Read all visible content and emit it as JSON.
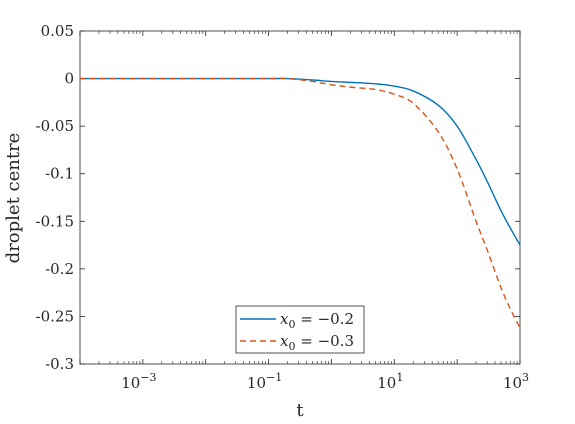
{
  "chart_data": {
    "type": "line",
    "xlabel": "t",
    "ylabel": "droplet centre",
    "xscale": "log",
    "xlim": [
      0.0001,
      1000
    ],
    "ylim": [
      -0.3,
      0.05
    ],
    "x_ticks": [
      {
        "value": 0.001,
        "base": "10",
        "exp": "−3"
      },
      {
        "value": 0.1,
        "base": "10",
        "exp": "−1"
      },
      {
        "value": 10,
        "base": "10",
        "exp": "1"
      },
      {
        "value": 1000,
        "base": "10",
        "exp": "3"
      }
    ],
    "y_ticks": [
      {
        "value": 0.05,
        "label": "0.05"
      },
      {
        "value": 0,
        "label": "0"
      },
      {
        "value": -0.05,
        "label": "-0.05"
      },
      {
        "value": -0.1,
        "label": "-0.1"
      },
      {
        "value": -0.15,
        "label": "-0.15"
      },
      {
        "value": -0.2,
        "label": "-0.2"
      },
      {
        "value": -0.25,
        "label": "-0.25"
      },
      {
        "value": -0.3,
        "label": "-0.3"
      }
    ],
    "grid": false,
    "legend_position": "bottom-center",
    "series": [
      {
        "name": "x_0 = −0.2",
        "legend_var": "x",
        "legend_sub": "0",
        "legend_rest": " = −0.2",
        "color": "#0072BD",
        "style": "solid",
        "x": [
          0.0001,
          0.001,
          0.01,
          0.1,
          0.2,
          0.5,
          1,
          2,
          5,
          10,
          20,
          50,
          100,
          200,
          300,
          500,
          700,
          1000
        ],
        "y": [
          0,
          0,
          0,
          0,
          0,
          -0.0015,
          -0.003,
          -0.004,
          -0.0055,
          -0.008,
          -0.013,
          -0.028,
          -0.05,
          -0.085,
          -0.108,
          -0.139,
          -0.157,
          -0.175
        ]
      },
      {
        "name": "x_0 = −0.3",
        "legend_var": "x",
        "legend_sub": "0",
        "legend_rest": " = −0.3",
        "color": "#D95319",
        "style": "dashed",
        "x": [
          0.0001,
          0.001,
          0.01,
          0.1,
          0.2,
          0.5,
          1,
          2,
          5,
          10,
          20,
          50,
          100,
          200,
          300,
          500,
          700,
          1000
        ],
        "y": [
          0,
          0,
          0,
          0,
          0,
          -0.003,
          -0.0065,
          -0.009,
          -0.0115,
          -0.0165,
          -0.026,
          -0.056,
          -0.095,
          -0.15,
          -0.18,
          -0.22,
          -0.242,
          -0.262
        ]
      }
    ]
  }
}
